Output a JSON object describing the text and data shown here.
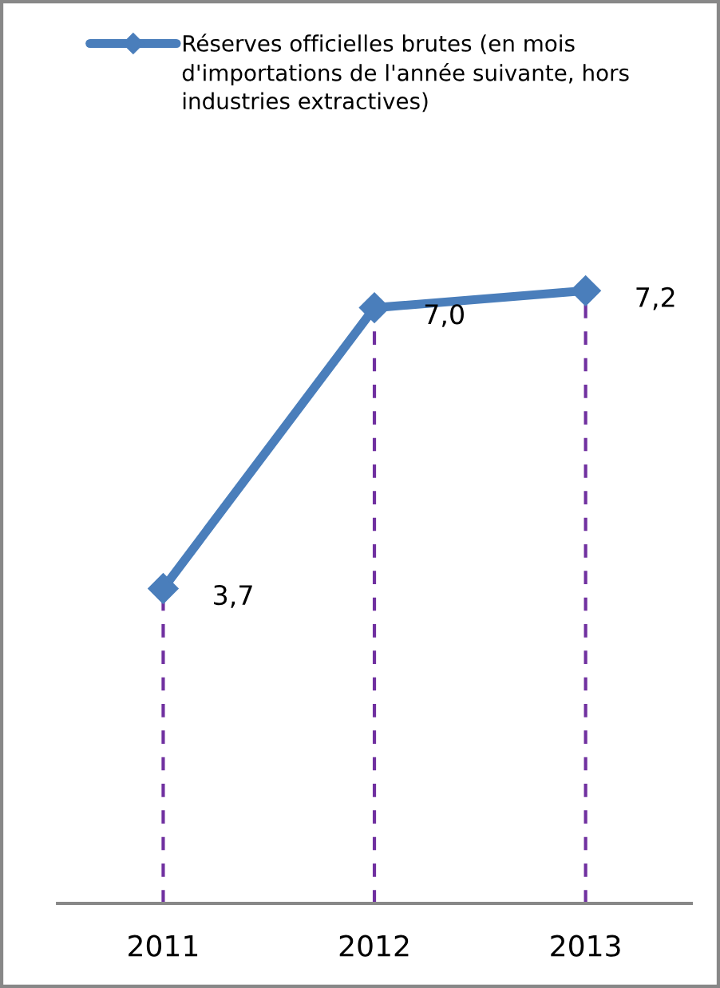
{
  "chart_data": {
    "type": "line",
    "categories": [
      "2011",
      "2012",
      "2013"
    ],
    "series": [
      {
        "name": "Réserves officielles brutes (en mois d'importations de l'année suivante, hors industries extractives)",
        "color": "#4a7ebb",
        "values": [
          3.7,
          7.0,
          7.2
        ],
        "value_labels": [
          "3,7",
          "7,0",
          "7,2"
        ]
      }
    ],
    "tick_labels": "x",
    "marker": "diamond",
    "line_style": "solid",
    "grid": "x",
    "legend": "top"
  }
}
